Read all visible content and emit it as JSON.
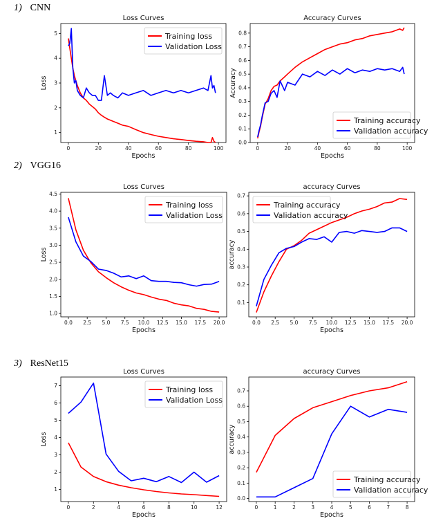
{
  "sections": [
    {
      "number": "1)",
      "name": "CNN"
    },
    {
      "number": "2)",
      "name": "VGG16"
    },
    {
      "number": "3)",
      "name": "ResNet15"
    }
  ],
  "colors": {
    "training": "#ff0000",
    "validation": "#0000ff"
  },
  "chart_data": [
    {
      "type": "line",
      "title": "Loss Curves",
      "xlabel": "Epochs",
      "ylabel": "Loss",
      "xlim": [
        -5,
        105
      ],
      "ylim": [
        0.6,
        5.4
      ],
      "xticks": [
        0,
        20,
        40,
        60,
        80,
        100
      ],
      "yticks": [
        1,
        2,
        3,
        4,
        5
      ],
      "legend": "top-right",
      "x": [
        0,
        1,
        2,
        3,
        4,
        5,
        6,
        8,
        10,
        12,
        14,
        16,
        18,
        20,
        22,
        24,
        26,
        28,
        30,
        33,
        36,
        40,
        45,
        50,
        55,
        60,
        65,
        70,
        75,
        80,
        85,
        90,
        93,
        95,
        96,
        97,
        98
      ],
      "series": [
        {
          "name": "Training loss",
          "color": "#ff0000",
          "values": [
            4.8,
            4.4,
            4.0,
            3.6,
            3.3,
            3.1,
            2.9,
            2.6,
            2.4,
            2.3,
            2.15,
            2.05,
            1.95,
            1.8,
            1.7,
            1.62,
            1.55,
            1.5,
            1.45,
            1.38,
            1.3,
            1.25,
            1.12,
            1.0,
            0.92,
            0.85,
            0.8,
            0.75,
            0.72,
            0.68,
            0.65,
            0.63,
            0.6,
            0.6,
            0.8,
            0.65,
            0.6
          ]
        },
        {
          "name": "Validation Loss",
          "color": "#0000ff",
          "values": [
            4.5,
            4.6,
            5.2,
            3.6,
            3.0,
            3.1,
            2.7,
            2.5,
            2.4,
            2.8,
            2.6,
            2.5,
            2.5,
            2.3,
            2.3,
            3.3,
            2.5,
            2.6,
            2.5,
            2.4,
            2.6,
            2.5,
            2.6,
            2.7,
            2.5,
            2.6,
            2.7,
            2.6,
            2.7,
            2.6,
            2.7,
            2.8,
            2.7,
            3.3,
            2.8,
            2.9,
            2.6
          ]
        }
      ]
    },
    {
      "type": "line",
      "title": "Accuracy Curves",
      "xlabel": "Epochs",
      "ylabel": "Accuracy",
      "xlim": [
        -5,
        105
      ],
      "ylim": [
        0.0,
        0.87
      ],
      "xticks": [
        0,
        20,
        40,
        60,
        80,
        100
      ],
      "yticks": [
        0.0,
        0.1,
        0.2,
        0.3,
        0.4,
        0.5,
        0.6,
        0.7,
        0.8
      ],
      "legend": "bottom-right",
      "x": [
        0,
        1,
        2,
        3,
        5,
        7,
        9,
        11,
        13,
        15,
        18,
        20,
        25,
        30,
        35,
        40,
        45,
        50,
        55,
        60,
        65,
        70,
        75,
        80,
        85,
        90,
        95,
        97,
        98
      ],
      "series": [
        {
          "name": "Training accuracy",
          "color": "#ff0000",
          "values": [
            0.03,
            0.08,
            0.12,
            0.18,
            0.28,
            0.32,
            0.38,
            0.41,
            0.42,
            0.45,
            0.48,
            0.5,
            0.55,
            0.59,
            0.62,
            0.65,
            0.68,
            0.7,
            0.72,
            0.73,
            0.75,
            0.76,
            0.78,
            0.79,
            0.8,
            0.81,
            0.83,
            0.82,
            0.84
          ]
        },
        {
          "name": "Validation accuracy",
          "color": "#0000ff",
          "values": [
            0.04,
            0.09,
            0.13,
            0.19,
            0.29,
            0.3,
            0.36,
            0.38,
            0.33,
            0.45,
            0.38,
            0.44,
            0.42,
            0.5,
            0.48,
            0.52,
            0.49,
            0.53,
            0.5,
            0.54,
            0.51,
            0.53,
            0.52,
            0.54,
            0.53,
            0.54,
            0.52,
            0.55,
            0.5
          ]
        }
      ]
    },
    {
      "type": "line",
      "title": "Loss Curves",
      "xlabel": "Epochs",
      "ylabel": "Loss",
      "xlim": [
        -1,
        21
      ],
      "ylim": [
        0.9,
        4.55
      ],
      "xticks": [
        0.0,
        2.5,
        5.0,
        7.5,
        10.0,
        12.5,
        15.0,
        17.5,
        20.0
      ],
      "yticks": [
        1.0,
        1.5,
        2.0,
        2.5,
        3.0,
        3.5,
        4.0,
        4.5
      ],
      "legend": "top-right",
      "x": [
        0,
        1,
        2,
        3,
        4,
        5,
        6,
        7,
        8,
        9,
        10,
        11,
        12,
        13,
        14,
        15,
        16,
        17,
        18,
        19,
        20
      ],
      "series": [
        {
          "name": "Training loss",
          "color": "#ff0000",
          "values": [
            4.38,
            3.45,
            2.85,
            2.48,
            2.22,
            2.05,
            1.9,
            1.78,
            1.68,
            1.6,
            1.55,
            1.48,
            1.42,
            1.38,
            1.3,
            1.25,
            1.22,
            1.15,
            1.12,
            1.06,
            1.04
          ]
        },
        {
          "name": "Validation Loss",
          "color": "#0000ff",
          "values": [
            3.82,
            3.1,
            2.68,
            2.52,
            2.3,
            2.26,
            2.18,
            2.07,
            2.1,
            2.02,
            2.1,
            1.96,
            1.94,
            1.94,
            1.91,
            1.9,
            1.84,
            1.8,
            1.85,
            1.86,
            1.94
          ]
        }
      ]
    },
    {
      "type": "line",
      "title": "accuracy Curves",
      "xlabel": "Epochs",
      "ylabel": "accuracy",
      "xlim": [
        -1,
        21
      ],
      "ylim": [
        0.02,
        0.72
      ],
      "xticks": [
        0.0,
        2.5,
        5.0,
        7.5,
        10.0,
        12.5,
        15.0,
        17.5,
        20.0
      ],
      "yticks": [
        0.1,
        0.2,
        0.3,
        0.4,
        0.5,
        0.6,
        0.7
      ],
      "legend": "top-left",
      "x": [
        0,
        1,
        2,
        3,
        4,
        5,
        6,
        7,
        8,
        9,
        10,
        11,
        12,
        13,
        14,
        15,
        16,
        17,
        18,
        19,
        20
      ],
      "series": [
        {
          "name": "Training accuracy",
          "color": "#ff0000",
          "values": [
            0.045,
            0.16,
            0.25,
            0.33,
            0.4,
            0.42,
            0.45,
            0.49,
            0.51,
            0.53,
            0.55,
            0.565,
            0.58,
            0.6,
            0.615,
            0.625,
            0.64,
            0.66,
            0.665,
            0.685,
            0.68
          ]
        },
        {
          "name": "Validation accuracy",
          "color": "#0000ff",
          "values": [
            0.08,
            0.23,
            0.31,
            0.38,
            0.405,
            0.415,
            0.44,
            0.46,
            0.455,
            0.47,
            0.44,
            0.495,
            0.5,
            0.49,
            0.505,
            0.5,
            0.495,
            0.5,
            0.52,
            0.52,
            0.5
          ]
        }
      ]
    },
    {
      "type": "line",
      "title": "Loss Curves",
      "xlabel": "Epochs",
      "ylabel": "Loss",
      "xlim": [
        -0.6,
        12.6
      ],
      "ylim": [
        0.3,
        7.5
      ],
      "xticks": [
        0,
        2,
        4,
        6,
        8,
        10,
        12
      ],
      "yticks": [
        1,
        2,
        3,
        4,
        5,
        6,
        7
      ],
      "legend": "top-right",
      "x": [
        0,
        1,
        2,
        3,
        4,
        5,
        6,
        7,
        8,
        9,
        10,
        11,
        12
      ],
      "series": [
        {
          "name": "Training loss",
          "color": "#ff0000",
          "values": [
            3.7,
            2.3,
            1.75,
            1.45,
            1.25,
            1.1,
            0.98,
            0.88,
            0.8,
            0.74,
            0.7,
            0.65,
            0.6
          ]
        },
        {
          "name": "Validation Loss",
          "color": "#0000ff",
          "values": [
            5.4,
            6.05,
            7.15,
            3.05,
            2.05,
            1.5,
            1.65,
            1.45,
            1.75,
            1.4,
            2.0,
            1.42,
            1.8
          ]
        }
      ]
    },
    {
      "type": "line",
      "title": "accuracy Curves",
      "xlabel": "Epochs",
      "ylabel": "accuracy",
      "xlim": [
        -0.4,
        8.4
      ],
      "ylim": [
        -0.02,
        0.79
      ],
      "xticks": [
        0,
        1,
        2,
        3,
        4,
        5,
        6,
        7,
        8
      ],
      "yticks": [
        0.0,
        0.1,
        0.2,
        0.3,
        0.4,
        0.5,
        0.6,
        0.7
      ],
      "legend": "bottom-right",
      "x": [
        0,
        1,
        2,
        3,
        4,
        5,
        6,
        7,
        8
      ],
      "series": [
        {
          "name": "Training accuracy",
          "color": "#ff0000",
          "values": [
            0.17,
            0.41,
            0.52,
            0.59,
            0.63,
            0.67,
            0.7,
            0.72,
            0.76
          ]
        },
        {
          "name": "Validation accuracy",
          "color": "#0000ff",
          "values": [
            0.01,
            0.01,
            0.07,
            0.13,
            0.42,
            0.6,
            0.53,
            0.58,
            0.56
          ]
        }
      ]
    }
  ]
}
